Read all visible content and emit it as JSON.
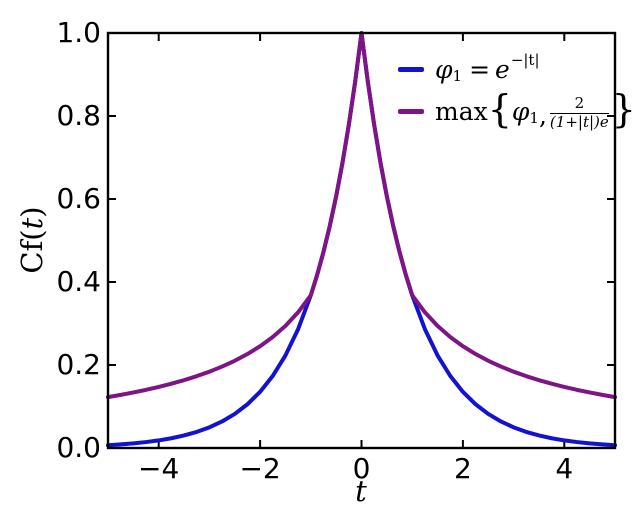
{
  "figure": {
    "background": "#ffffff",
    "axis_color": "#000000"
  },
  "chart_data": {
    "type": "line",
    "title": "",
    "xlabel": "t",
    "ylabel": "Cf(t)",
    "xlim": [
      -5,
      5
    ],
    "ylim": [
      0,
      1
    ],
    "grid": false,
    "legend_position": "upper right",
    "x_ticks": [
      -4,
      -2,
      0,
      2,
      4
    ],
    "x_tick_labels": [
      "−4",
      "−2",
      "0",
      "2",
      "4"
    ],
    "y_ticks": [
      0.0,
      0.2,
      0.4,
      0.6,
      0.8,
      1.0
    ],
    "y_tick_labels": [
      "0.0",
      "0.2",
      "0.4",
      "0.6",
      "0.8",
      "1.0"
    ],
    "series": [
      {
        "name": "phi1",
        "label": "φ₁ = e^(−|t|)",
        "formula": "exp(-abs(t))",
        "color": "#1212d1",
        "linewidth": 4,
        "x": [
          -5,
          -4.75,
          -4.5,
          -4.25,
          -4,
          -3.75,
          -3.5,
          -3.25,
          -3,
          -2.75,
          -2.5,
          -2.25,
          -2,
          -1.75,
          -1.5,
          -1.25,
          -1,
          -0.875,
          -0.75,
          -0.625,
          -0.5,
          -0.375,
          -0.25,
          -0.125,
          0,
          0.125,
          0.25,
          0.375,
          0.5,
          0.625,
          0.75,
          0.875,
          1,
          1.25,
          1.5,
          1.75,
          2,
          2.25,
          2.5,
          2.75,
          3,
          3.25,
          3.5,
          3.75,
          4,
          4.25,
          4.5,
          4.75,
          5
        ],
        "y": [
          0.0067,
          0.0087,
          0.0111,
          0.0143,
          0.0183,
          0.0235,
          0.0302,
          0.0388,
          0.0498,
          0.0639,
          0.0821,
          0.1054,
          0.1353,
          0.1738,
          0.2231,
          0.2865,
          0.3679,
          0.4169,
          0.4724,
          0.5353,
          0.6065,
          0.6873,
          0.7788,
          0.8825,
          1.0,
          0.8825,
          0.7788,
          0.6873,
          0.6065,
          0.5353,
          0.4724,
          0.4169,
          0.3679,
          0.2865,
          0.2231,
          0.1738,
          0.1353,
          0.1054,
          0.0821,
          0.0639,
          0.0498,
          0.0388,
          0.0302,
          0.0235,
          0.0183,
          0.0143,
          0.0111,
          0.0087,
          0.0067
        ]
      },
      {
        "name": "max-envelope",
        "label": "max{φ₁, 2/((1+|t|)e)}",
        "formula": "max(exp(-abs(t)), 2/((1+abs(t))*e))",
        "color": "#7f1487",
        "linewidth": 4,
        "x": [
          -5,
          -4.75,
          -4.5,
          -4.25,
          -4,
          -3.75,
          -3.5,
          -3.25,
          -3,
          -2.75,
          -2.5,
          -2.25,
          -2,
          -1.75,
          -1.5,
          -1.25,
          -1,
          -0.875,
          -0.75,
          -0.625,
          -0.5,
          -0.375,
          -0.25,
          -0.125,
          0,
          0.125,
          0.25,
          0.375,
          0.5,
          0.625,
          0.75,
          0.875,
          1,
          1.25,
          1.5,
          1.75,
          2,
          2.25,
          2.5,
          2.75,
          3,
          3.25,
          3.5,
          3.75,
          4,
          4.25,
          4.5,
          4.75,
          5
        ],
        "y": [
          0.1226,
          0.128,
          0.1338,
          0.1401,
          0.1472,
          0.1549,
          0.1635,
          0.1731,
          0.1839,
          0.1962,
          0.2102,
          0.2264,
          0.2453,
          0.2675,
          0.2943,
          0.327,
          0.3679,
          0.4169,
          0.4724,
          0.5353,
          0.6065,
          0.6873,
          0.7788,
          0.8825,
          1.0,
          0.8825,
          0.7788,
          0.6873,
          0.6065,
          0.5353,
          0.4724,
          0.4169,
          0.3679,
          0.327,
          0.2943,
          0.2675,
          0.2453,
          0.2264,
          0.2102,
          0.1962,
          0.1839,
          0.1731,
          0.1635,
          0.1549,
          0.1472,
          0.1401,
          0.1338,
          0.128,
          0.1226
        ]
      }
    ]
  },
  "axes": {
    "ylabel_parts": {
      "pre": "Cf(",
      "t": "t",
      "post": ")"
    }
  },
  "legend": {
    "items": [
      {
        "name": "phi1",
        "parts": {
          "phi": "φ",
          "sub": "1",
          "eq": "=",
          "base": "e",
          "sup": "−|t|"
        }
      },
      {
        "name": "max-envelope",
        "parts": {
          "fn": "max",
          "lbrace": "{",
          "phi": "φ",
          "sub": "1",
          "comma": ",",
          "num": "2",
          "den": "(1+|t|)e",
          "rbrace": "}"
        }
      }
    ]
  }
}
